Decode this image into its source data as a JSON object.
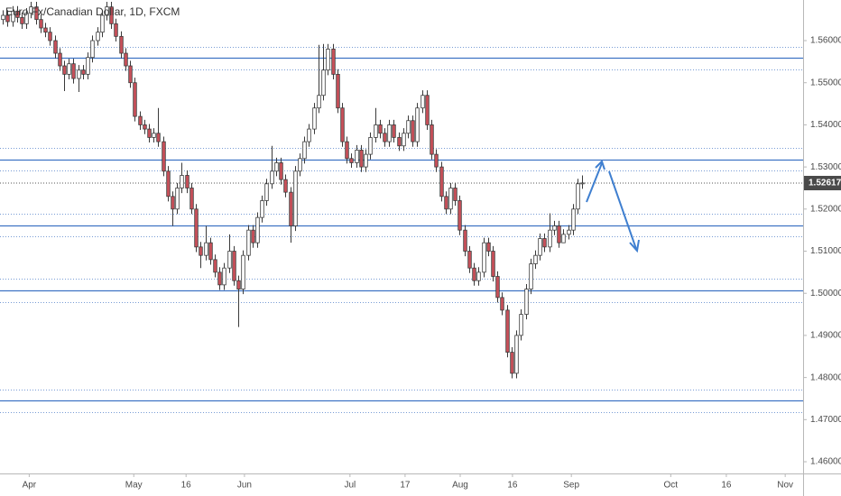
{
  "chart_data": {
    "type": "candlestick",
    "title": "Euro Fx/Canadian Dollar, 1D, FXCM",
    "xlim": [
      -0.6,
      169.9
    ],
    "ylim": [
      1.45722,
      1.56964
    ],
    "xticks": [
      {
        "value": 5.6,
        "label": "Apr"
      },
      {
        "value": 27.8,
        "label": "May"
      },
      {
        "value": 38.9,
        "label": "16"
      },
      {
        "value": 51.3,
        "label": "Jun"
      },
      {
        "value": 73.7,
        "label": "Jul"
      },
      {
        "value": 85.4,
        "label": "17"
      },
      {
        "value": 97.1,
        "label": "Aug"
      },
      {
        "value": 108.2,
        "label": "16"
      },
      {
        "value": 120.7,
        "label": "Sep"
      },
      {
        "value": 141.8,
        "label": "Oct"
      },
      {
        "value": 153.6,
        "label": "16"
      },
      {
        "value": 166.1,
        "label": "Nov"
      }
    ],
    "yticks": [
      {
        "value": 1.46,
        "label": "1.46000"
      },
      {
        "value": 1.47,
        "label": "1.47000"
      },
      {
        "value": 1.48,
        "label": "1.48000"
      },
      {
        "value": 1.49,
        "label": "1.49000"
      },
      {
        "value": 1.5,
        "label": "1.50000"
      },
      {
        "value": 1.51,
        "label": "1.51000"
      },
      {
        "value": 1.52,
        "label": "1.52000"
      },
      {
        "value": 1.53,
        "label": "1.53000"
      },
      {
        "value": 1.54,
        "label": "1.54000"
      },
      {
        "value": 1.55,
        "label": "1.55000"
      },
      {
        "value": 1.56,
        "label": "1.56000"
      }
    ],
    "up_color": "#ffffff",
    "down_color": "#c8505a",
    "outline_color": "#3a3a3a",
    "level_color": "#3f73c4",
    "levels": [
      1.5559,
      1.5317,
      1.5161,
      1.5007,
      1.4746
    ],
    "zone_bounds": [
      1.5585,
      1.5531,
      1.5345,
      1.5292,
      1.5189,
      1.5135,
      1.5035,
      1.4979,
      1.4771,
      1.4718
    ],
    "last_price": 1.52617,
    "x": [
      0,
      1,
      2,
      3,
      4,
      5,
      6,
      7,
      8,
      9,
      10,
      11,
      12,
      13,
      14,
      15,
      16,
      17,
      18,
      19,
      20,
      21,
      22,
      23,
      24,
      25,
      26,
      27,
      28,
      29,
      30,
      31,
      32,
      33,
      34,
      35,
      36,
      37,
      38,
      39,
      40,
      41,
      42,
      43,
      44,
      45,
      46,
      47,
      48,
      49,
      50,
      51,
      52,
      53,
      54,
      55,
      56,
      57,
      58,
      59,
      60,
      61,
      62,
      63,
      64,
      65,
      66,
      67,
      68,
      69,
      70,
      71,
      72,
      73,
      74,
      75,
      76,
      77,
      78,
      79,
      80,
      81,
      82,
      83,
      84,
      85,
      86,
      87,
      88,
      89,
      90,
      91,
      92,
      93,
      94,
      95,
      96,
      97,
      98,
      99,
      100,
      101,
      102,
      103,
      104,
      105,
      106,
      107,
      108,
      109,
      110,
      111,
      112,
      113,
      114,
      115,
      116,
      117,
      118,
      119,
      120,
      121,
      122,
      123
    ],
    "open": [
      1.565,
      1.566,
      1.5645,
      1.567,
      1.5655,
      1.564,
      1.5665,
      1.568,
      1.565,
      1.563,
      1.562,
      1.56,
      1.557,
      1.554,
      1.552,
      1.5545,
      1.551,
      1.553,
      1.552,
      1.556,
      1.56,
      1.562,
      1.566,
      1.568,
      1.564,
      1.561,
      1.557,
      1.554,
      1.55,
      1.542,
      1.54,
      1.539,
      1.537,
      1.538,
      1.536,
      1.529,
      1.523,
      1.52,
      1.525,
      1.528,
      1.525,
      1.52,
      1.511,
      1.509,
      1.512,
      1.508,
      1.505,
      1.502,
      1.506,
      1.51,
      1.503,
      1.501,
      1.509,
      1.515,
      1.512,
      1.518,
      1.522,
      1.526,
      1.529,
      1.531,
      1.527,
      1.524,
      1.516,
      1.529,
      1.532,
      1.536,
      1.539,
      1.544,
      1.547,
      1.553,
      1.558,
      1.552,
      1.544,
      1.536,
      1.532,
      1.531,
      1.534,
      1.53,
      1.533,
      1.537,
      1.54,
      1.538,
      1.536,
      1.54,
      1.537,
      1.535,
      1.538,
      1.541,
      1.536,
      1.544,
      1.547,
      1.54,
      1.533,
      1.53,
      1.523,
      1.52,
      1.525,
      1.522,
      1.515,
      1.51,
      1.506,
      1.503,
      1.505,
      1.512,
      1.51,
      1.504,
      1.499,
      1.496,
      1.486,
      1.481,
      1.49,
      1.495,
      1.501,
      1.507,
      1.509,
      1.513,
      1.511,
      1.515,
      1.516,
      1.512,
      1.514,
      1.515,
      1.52,
      1.526
    ],
    "high": [
      1.5672,
      1.5672,
      1.5682,
      1.5682,
      1.5667,
      1.5677,
      1.5692,
      1.5692,
      1.5662,
      1.5642,
      1.5632,
      1.5612,
      1.5582,
      1.5552,
      1.5557,
      1.5557,
      1.5542,
      1.5542,
      1.5572,
      1.5612,
      1.5632,
      1.5672,
      1.5692,
      1.5692,
      1.5652,
      1.5622,
      1.5582,
      1.5552,
      1.5512,
      1.5432,
      1.5412,
      1.5402,
      1.5392,
      1.544,
      1.5372,
      1.5302,
      1.5242,
      1.5262,
      1.531,
      1.5292,
      1.5262,
      1.5212,
      1.5122,
      1.516,
      1.5132,
      1.5092,
      1.5062,
      1.5072,
      1.514,
      1.5112,
      1.5042,
      1.5102,
      1.5162,
      1.5162,
      1.5192,
      1.5232,
      1.5272,
      1.535,
      1.5322,
      1.5322,
      1.5282,
      1.5252,
      1.5302,
      1.5332,
      1.5372,
      1.5402,
      1.5452,
      1.559,
      1.5592,
      1.5592,
      1.5592,
      1.5532,
      1.5452,
      1.5372,
      1.5332,
      1.5352,
      1.5352,
      1.5342,
      1.5382,
      1.544,
      1.5412,
      1.5392,
      1.5412,
      1.5412,
      1.5382,
      1.5392,
      1.5422,
      1.5422,
      1.5452,
      1.5482,
      1.5482,
      1.5412,
      1.5342,
      1.5312,
      1.5242,
      1.5262,
      1.5262,
      1.5232,
      1.5162,
      1.5112,
      1.5072,
      1.5062,
      1.5132,
      1.5132,
      1.5112,
      1.5052,
      1.5002,
      1.4972,
      1.4872,
      1.4912,
      1.4962,
      1.5022,
      1.5082,
      1.5102,
      1.5142,
      1.5142,
      1.519,
      1.5172,
      1.5172,
      1.5152,
      1.5162,
      1.5212,
      1.5272,
      1.528
    ],
    "low": [
      1.5638,
      1.5633,
      1.5633,
      1.5643,
      1.5628,
      1.5628,
      1.5653,
      1.5638,
      1.5618,
      1.5608,
      1.5588,
      1.5558,
      1.5528,
      1.548,
      1.5508,
      1.5498,
      1.5478,
      1.5508,
      1.5508,
      1.5548,
      1.5588,
      1.5608,
      1.5648,
      1.5628,
      1.5598,
      1.5558,
      1.5528,
      1.5488,
      1.5408,
      1.5388,
      1.5378,
      1.5358,
      1.5358,
      1.5348,
      1.5278,
      1.5218,
      1.516,
      1.5188,
      1.5238,
      1.5238,
      1.5188,
      1.5098,
      1.506,
      1.5078,
      1.5068,
      1.5038,
      1.5008,
      1.5008,
      1.5048,
      1.5018,
      1.492,
      1.4998,
      1.5078,
      1.5108,
      1.5108,
      1.5168,
      1.5208,
      1.5248,
      1.5278,
      1.5258,
      1.5228,
      1.512,
      1.5148,
      1.5278,
      1.5308,
      1.5348,
      1.5378,
      1.5428,
      1.5458,
      1.5518,
      1.5508,
      1.5428,
      1.5348,
      1.5308,
      1.5298,
      1.5298,
      1.5288,
      1.5288,
      1.5318,
      1.5358,
      1.5368,
      1.5348,
      1.5348,
      1.5358,
      1.5338,
      1.5338,
      1.5368,
      1.5348,
      1.5348,
      1.5428,
      1.5388,
      1.5318,
      1.5288,
      1.5218,
      1.5188,
      1.5188,
      1.5208,
      1.5138,
      1.5088,
      1.5048,
      1.5018,
      1.5018,
      1.5038,
      1.5088,
      1.5028,
      1.4978,
      1.4948,
      1.4848,
      1.4798,
      1.4798,
      1.4888,
      1.4938,
      1.4998,
      1.5058,
      1.5078,
      1.5098,
      1.5098,
      1.5138,
      1.5108,
      1.5128,
      1.5128,
      1.5138,
      1.5188,
      1.5248
    ],
    "close": [
      1.566,
      1.5645,
      1.567,
      1.5655,
      1.564,
      1.5665,
      1.568,
      1.565,
      1.563,
      1.562,
      1.56,
      1.557,
      1.554,
      1.552,
      1.5545,
      1.551,
      1.553,
      1.552,
      1.556,
      1.56,
      1.562,
      1.566,
      1.568,
      1.564,
      1.561,
      1.557,
      1.554,
      1.55,
      1.542,
      1.54,
      1.539,
      1.537,
      1.538,
      1.536,
      1.529,
      1.523,
      1.52,
      1.525,
      1.528,
      1.525,
      1.52,
      1.511,
      1.509,
      1.512,
      1.508,
      1.505,
      1.502,
      1.506,
      1.51,
      1.503,
      1.501,
      1.509,
      1.515,
      1.512,
      1.518,
      1.522,
      1.526,
      1.529,
      1.531,
      1.527,
      1.524,
      1.516,
      1.529,
      1.532,
      1.536,
      1.539,
      1.544,
      1.547,
      1.553,
      1.558,
      1.552,
      1.544,
      1.536,
      1.532,
      1.531,
      1.534,
      1.53,
      1.533,
      1.537,
      1.54,
      1.538,
      1.536,
      1.54,
      1.537,
      1.535,
      1.538,
      1.541,
      1.536,
      1.544,
      1.547,
      1.54,
      1.533,
      1.53,
      1.523,
      1.52,
      1.525,
      1.522,
      1.515,
      1.51,
      1.506,
      1.503,
      1.505,
      1.512,
      1.51,
      1.504,
      1.499,
      1.496,
      1.486,
      1.481,
      1.49,
      1.495,
      1.501,
      1.507,
      1.509,
      1.513,
      1.511,
      1.515,
      1.516,
      1.512,
      1.514,
      1.515,
      1.52,
      1.526,
      1.5262
    ]
  }
}
